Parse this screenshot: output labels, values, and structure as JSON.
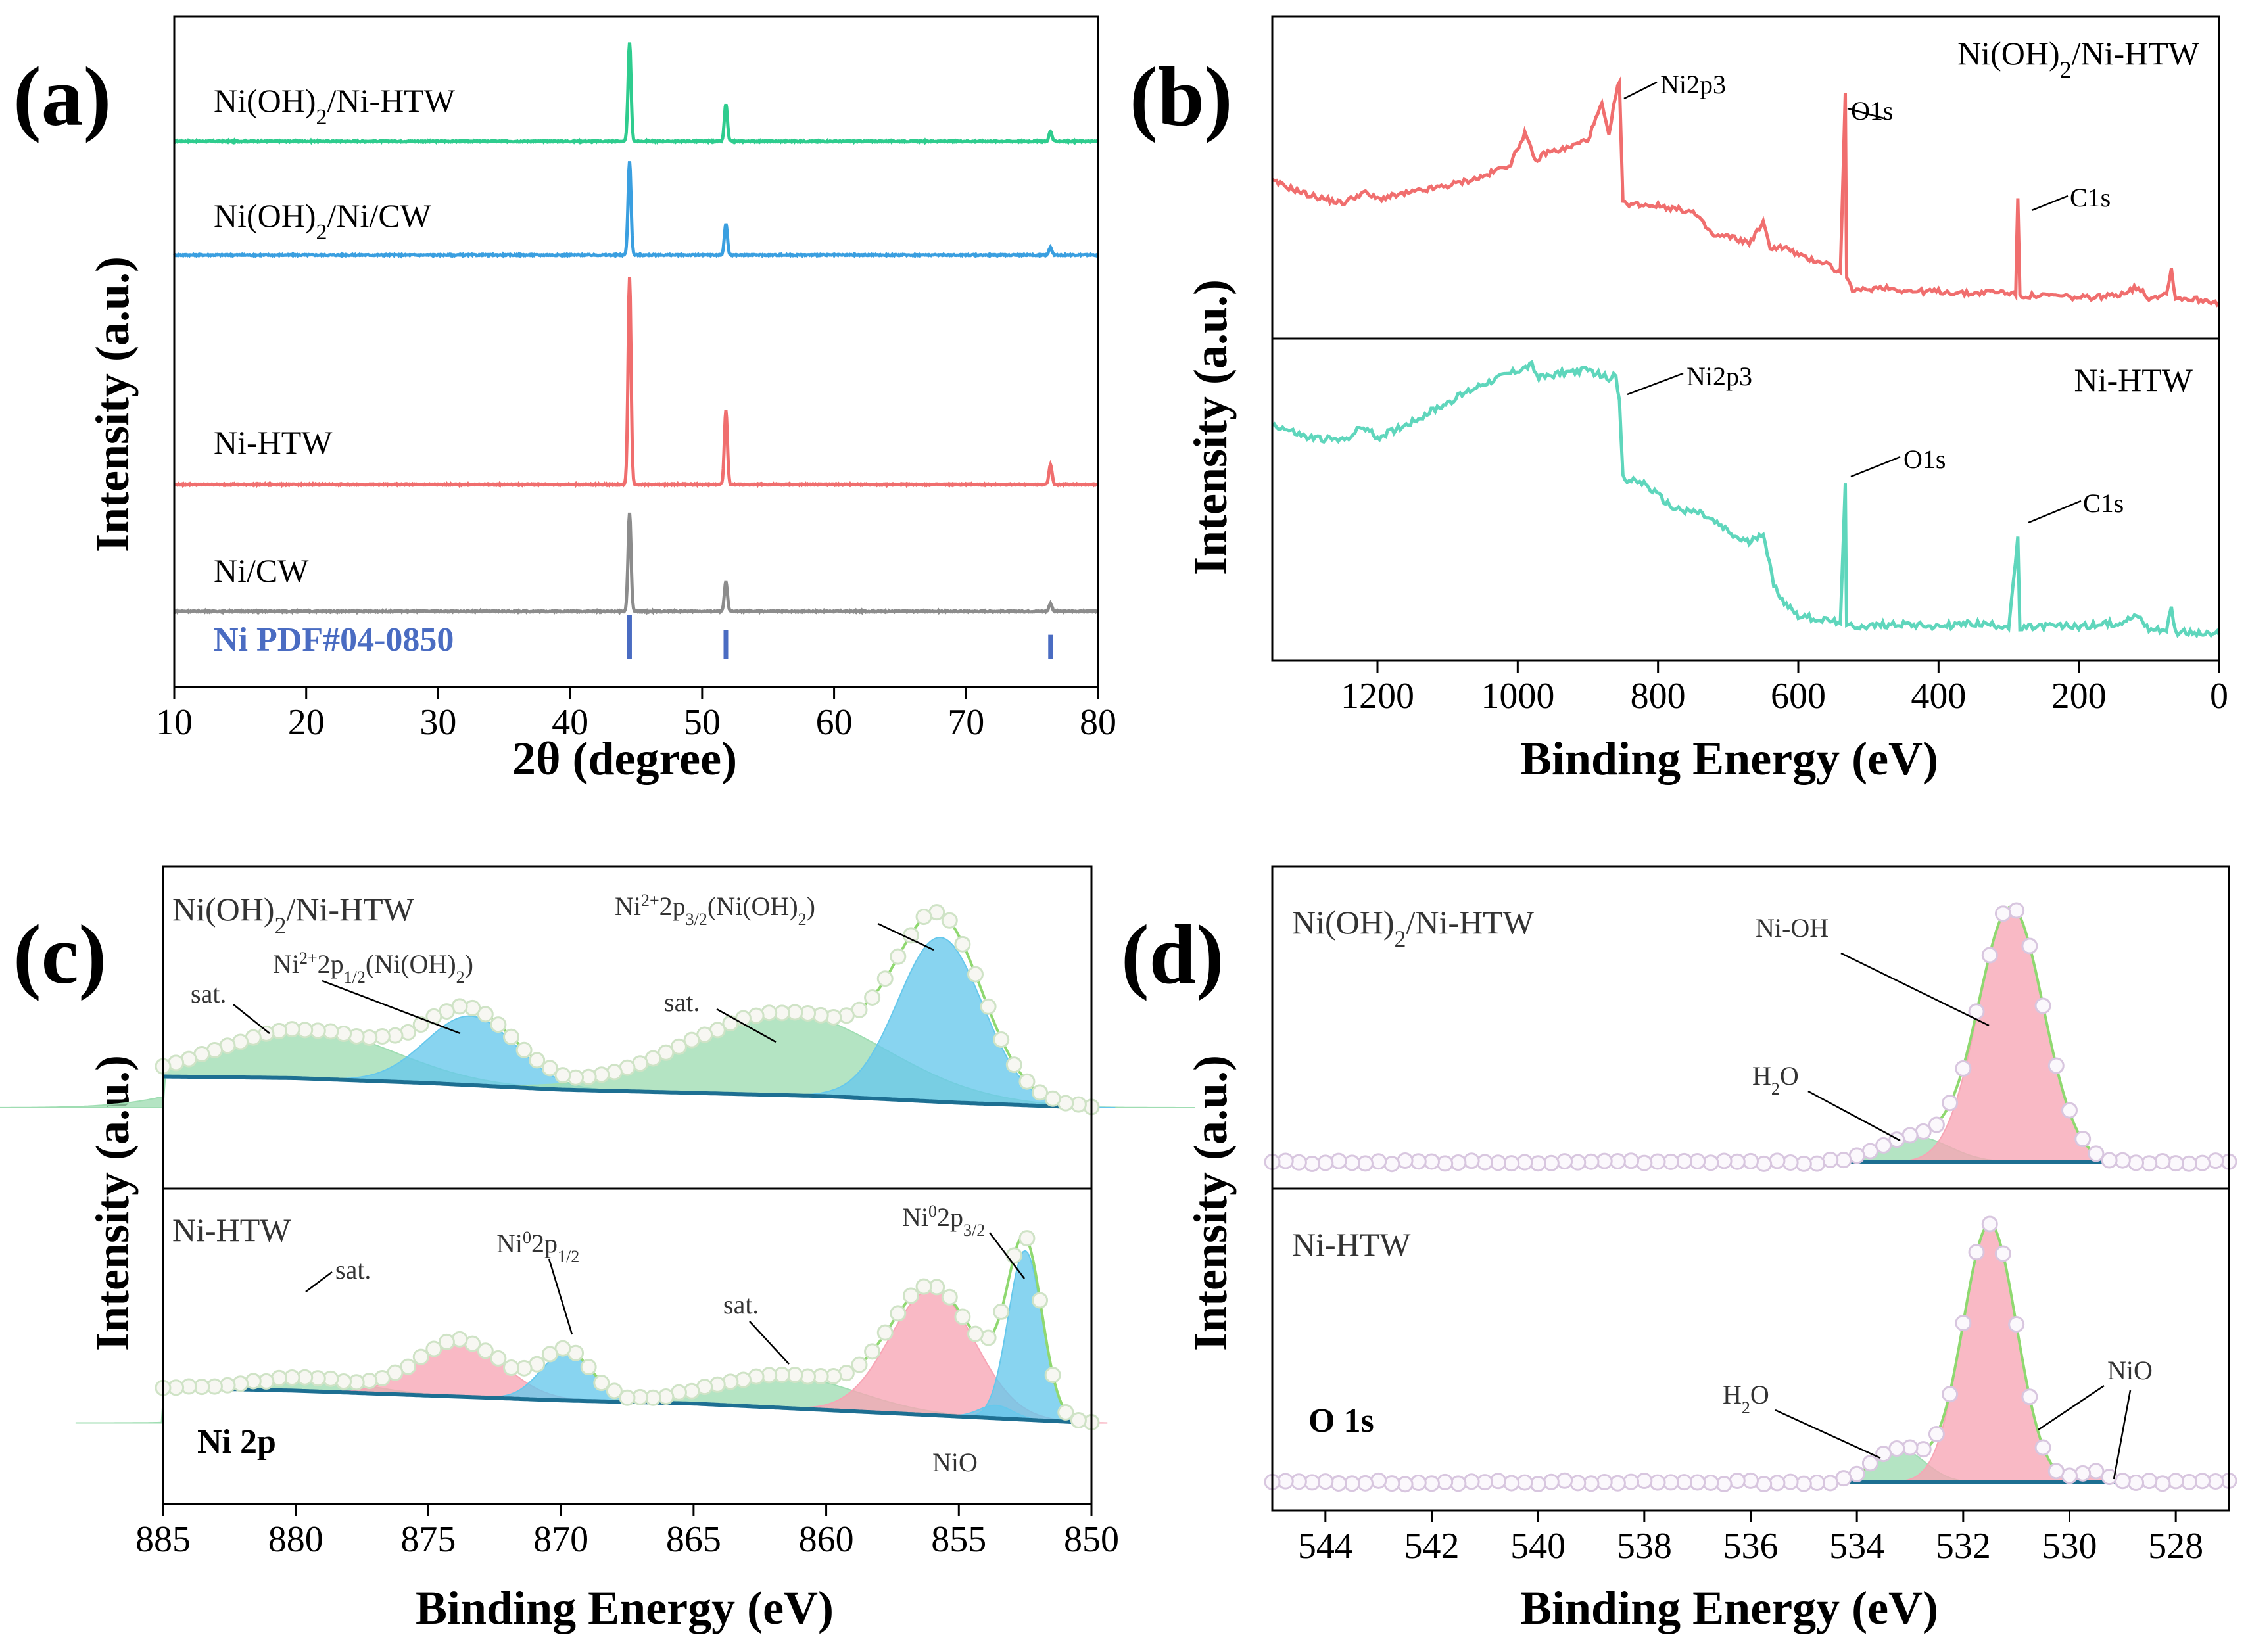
{
  "colors": {
    "green": "#2ecc8e",
    "blue": "#3a9fe0",
    "red": "#f06e6e",
    "gray": "#8c8c8c",
    "pdf": "#4a6cc2",
    "teal": "#5fd6bc",
    "baseline": "#1d6f92",
    "fill_green": "#9fddb2",
    "fill_blue": "#66c8ec",
    "fill_pink": "#f7a5b5",
    "env": "#8fd870"
  },
  "chart_data": [
    {
      "panel": "(a)",
      "type": "line",
      "xlabel": "2θ  (degree)",
      "ylabel": "Intensity (a.u.)",
      "xlim": [
        10,
        80
      ],
      "xticks": [
        10,
        20,
        30,
        40,
        50,
        60,
        70,
        80
      ],
      "series": [
        {
          "name": "Ni(OH)",
          "name_sub": "2",
          "name_rest": "/Ni-HTW",
          "color_key": "green",
          "peaks": [
            {
              "x": 44.5,
              "rel": 1.0
            },
            {
              "x": 51.8,
              "rel": 0.38
            },
            {
              "x": 76.4,
              "rel": 0.1
            }
          ]
        },
        {
          "name": "Ni(OH)",
          "name_sub": "2",
          "name_rest": "/Ni/CW",
          "color_key": "blue",
          "peaks": [
            {
              "x": 44.5,
              "rel": 0.95
            },
            {
              "x": 51.8,
              "rel": 0.32
            },
            {
              "x": 76.4,
              "rel": 0.08
            }
          ]
        },
        {
          "name": "Ni-HTW",
          "name_sub": "",
          "name_rest": "",
          "color_key": "red",
          "peaks": [
            {
              "x": 44.5,
              "rel": 2.1
            },
            {
              "x": 51.8,
              "rel": 0.75
            },
            {
              "x": 76.4,
              "rel": 0.2
            }
          ]
        },
        {
          "name": "Ni/CW",
          "name_sub": "",
          "name_rest": "",
          "color_key": "gray",
          "peaks": [
            {
              "x": 44.5,
              "rel": 1.0
            },
            {
              "x": 51.8,
              "rel": 0.3
            },
            {
              "x": 76.4,
              "rel": 0.08
            }
          ]
        }
      ],
      "reference": {
        "name": "Ni PDF#04-0850",
        "sticks": [
          {
            "x": 44.5,
            "rel": 1.0
          },
          {
            "x": 51.8,
            "rel": 0.65
          },
          {
            "x": 76.4,
            "rel": 0.55
          }
        ]
      }
    },
    {
      "panel": "(b)",
      "type": "line",
      "xlabel": "Binding Energy (eV)",
      "ylabel": "Intensity (a.u.)",
      "xlim": [
        1350,
        0
      ],
      "xticks": [
        1200,
        1000,
        800,
        600,
        400,
        200,
        0
      ],
      "series": [
        {
          "name": "Ni(OH)",
          "name_sub": "2",
          "name_rest": "/Ni-HTW",
          "color_key": "red",
          "points": [
            [
              1350,
              0.55
            ],
            [
              1300,
              0.49
            ],
            [
              1250,
              0.45
            ],
            [
              1220,
              0.5
            ],
            [
              1200,
              0.47
            ],
            [
              1150,
              0.5
            ],
            [
              1100,
              0.53
            ],
            [
              1050,
              0.57
            ],
            [
              1010,
              0.63
            ],
            [
              990,
              0.77
            ],
            [
              975,
              0.64
            ],
            [
              960,
              0.68
            ],
            [
              930,
              0.7
            ],
            [
              900,
              0.74
            ],
            [
              880,
              0.9
            ],
            [
              870,
              0.75
            ],
            [
              860,
              0.95
            ],
            [
              855,
              1.0
            ],
            [
              850,
              0.45
            ],
            [
              800,
              0.44
            ],
            [
              750,
              0.41
            ],
            [
              720,
              0.3
            ],
            [
              700,
              0.3
            ],
            [
              670,
              0.27
            ],
            [
              650,
              0.36
            ],
            [
              640,
              0.25
            ],
            [
              620,
              0.25
            ],
            [
              590,
              0.2
            ],
            [
              560,
              0.18
            ],
            [
              540,
              0.13
            ],
            [
              533,
              0.95
            ],
            [
              531,
              0.1
            ],
            [
              520,
              0.05
            ],
            [
              480,
              0.07
            ],
            [
              440,
              0.05
            ],
            [
              400,
              0.05
            ],
            [
              360,
              0.04
            ],
            [
              320,
              0.05
            ],
            [
              290,
              0.04
            ],
            [
              287,
              0.48
            ],
            [
              284,
              0.03
            ],
            [
              270,
              0.03
            ],
            [
              230,
              0.03
            ],
            [
              200,
              0.02
            ],
            [
              150,
              0.03
            ],
            [
              115,
              0.07
            ],
            [
              100,
              0.02
            ],
            [
              75,
              0.04
            ],
            [
              68,
              0.15
            ],
            [
              62,
              0.02
            ],
            [
              20,
              0.01
            ],
            [
              0,
              0.0
            ]
          ],
          "labels": [
            {
              "text": "Ni2p3",
              "x": 855
            },
            {
              "text": "O1s",
              "x": 531
            },
            {
              "text": "C1s",
              "x": 285
            }
          ]
        },
        {
          "name": "Ni-HTW",
          "name_sub": "",
          "name_rest": "",
          "color_key": "teal",
          "points": [
            [
              1350,
              0.78
            ],
            [
              1300,
              0.73
            ],
            [
              1250,
              0.72
            ],
            [
              1220,
              0.77
            ],
            [
              1200,
              0.73
            ],
            [
              1150,
              0.79
            ],
            [
              1100,
              0.86
            ],
            [
              1050,
              0.93
            ],
            [
              1010,
              0.97
            ],
            [
              980,
              1.0
            ],
            [
              970,
              0.95
            ],
            [
              940,
              0.97
            ],
            [
              900,
              0.98
            ],
            [
              870,
              0.95
            ],
            [
              860,
              0.97
            ],
            [
              855,
              0.86
            ],
            [
              850,
              0.58
            ],
            [
              820,
              0.56
            ],
            [
              780,
              0.47
            ],
            [
              740,
              0.45
            ],
            [
              710,
              0.4
            ],
            [
              690,
              0.36
            ],
            [
              670,
              0.34
            ],
            [
              650,
              0.38
            ],
            [
              635,
              0.18
            ],
            [
              620,
              0.12
            ],
            [
              600,
              0.07
            ],
            [
              560,
              0.05
            ],
            [
              540,
              0.05
            ],
            [
              533,
              0.55
            ],
            [
              531,
              0.03
            ],
            [
              500,
              0.03
            ],
            [
              450,
              0.04
            ],
            [
              400,
              0.03
            ],
            [
              350,
              0.04
            ],
            [
              300,
              0.03
            ],
            [
              287,
              0.35
            ],
            [
              284,
              0.02
            ],
            [
              250,
              0.03
            ],
            [
              200,
              0.03
            ],
            [
              150,
              0.04
            ],
            [
              115,
              0.07
            ],
            [
              100,
              0.02
            ],
            [
              75,
              0.02
            ],
            [
              68,
              0.1
            ],
            [
              62,
              0.01
            ],
            [
              20,
              0.0
            ],
            [
              0,
              0.0
            ]
          ],
          "labels": [
            {
              "text": "Ni2p3",
              "x": 855
            },
            {
              "text": "O1s",
              "x": 531
            },
            {
              "text": "C1s",
              "x": 285
            }
          ]
        }
      ]
    },
    {
      "panel": "(c)",
      "type": "line",
      "xlabel": "Binding Energy (eV)",
      "ylabel": "Intensity (a.u.)",
      "xlim": [
        885,
        850
      ],
      "xticks": [
        885,
        880,
        875,
        870,
        865,
        860,
        855,
        850
      ],
      "annotation": "Ni 2p",
      "subplots": [
        {
          "name": "Ni(OH)",
          "name_sub": "2",
          "name_rest": "/Ni-HTW",
          "baseline": [
            [
              885,
              0.05
            ],
            [
              880,
              0.04
            ],
            [
              875,
              0.01
            ],
            [
              870,
              -0.03
            ],
            [
              865,
              -0.05
            ],
            [
              860,
              -0.07
            ],
            [
              855,
              -0.11
            ],
            [
              850,
              -0.14
            ]
          ],
          "peaks": [
            {
              "label": "sat.",
              "center": 879.5,
              "height": 0.3,
              "width": 6.0,
              "fill": "fill_green"
            },
            {
              "label": "Ni2+2p1/2(Ni(OH)2)",
              "center": 873.4,
              "height": 0.42,
              "width": 3.2,
              "fill": "fill_blue"
            },
            {
              "label": "sat.",
              "center": 861.5,
              "height": 0.5,
              "width": 7.0,
              "fill": "fill_green"
            },
            {
              "label": "Ni2+2p3/2(Ni(OH)2)",
              "center": 855.7,
              "height": 1.0,
              "width": 3.0,
              "fill": "fill_blue"
            }
          ]
        },
        {
          "name": "Ni-HTW",
          "name_sub": "",
          "name_rest": "",
          "baseline": [
            [
              885,
              0.12
            ],
            [
              880,
              0.1
            ],
            [
              875,
              0.07
            ],
            [
              870,
              0.04
            ],
            [
              865,
              0.02
            ],
            [
              860,
              -0.02
            ],
            [
              855,
              -0.06
            ],
            [
              850,
              -0.1
            ]
          ],
          "peaks": [
            {
              "label": "sat.",
              "center": 879.5,
              "height": 0.08,
              "width": 4.0,
              "fill": "fill_green"
            },
            {
              "label": "",
              "center": 873.8,
              "height": 0.35,
              "width": 3.0,
              "fill": "fill_pink"
            },
            {
              "label": "Ni02p1/2",
              "center": 869.8,
              "height": 0.3,
              "width": 1.8,
              "fill": "fill_blue"
            },
            {
              "label": "sat.",
              "center": 861.5,
              "height": 0.2,
              "width": 5.0,
              "fill": "fill_green"
            },
            {
              "label": "",
              "center": 856.0,
              "height": 0.78,
              "width": 3.0,
              "fill": "fill_pink"
            },
            {
              "label": "NiO",
              "center": 853.6,
              "height": 0.08,
              "width": 1.2,
              "fill": "fill_blue"
            },
            {
              "label": "Ni02p3/2",
              "center": 852.5,
              "height": 1.05,
              "width": 1.2,
              "fill": "fill_blue"
            }
          ]
        }
      ],
      "labels": {
        "sat": "sat.",
        "ni2_p12_pre": "Ni",
        "ni2_p12_sup": "2+",
        "ni2_p12_mid": "2p",
        "ni2_p12_sub": "1/2",
        "ni2_p12_post": "(Ni(OH)",
        "ni2_p12_sub2": "2",
        "ni2_p12_end": ")",
        "ni2_p32_pre": "Ni",
        "ni2_p32_sup": "2+",
        "ni2_p32_mid": "2p",
        "ni2_p32_sub": "3/2",
        "ni2_p32_post": "(Ni(OH)",
        "ni2_p32_sub2": "2",
        "ni2_p32_end": ")",
        "ni0_p12_pre": "Ni",
        "ni0_p12_sup": "0",
        "ni0_p12_mid": "2p",
        "ni0_p12_sub": "1/2",
        "ni0_p32_pre": "Ni",
        "ni0_p32_sup": "0",
        "ni0_p32_mid": "2p",
        "ni0_p32_sub": "3/2",
        "nio": "NiO"
      }
    },
    {
      "panel": "(d)",
      "type": "line",
      "xlabel": "Binding Energy (eV)",
      "ylabel": "Intensity (a.u.)",
      "xlim": [
        545,
        527
      ],
      "xticks": [
        544,
        542,
        540,
        538,
        536,
        534,
        532,
        530,
        528
      ],
      "annotation": "O 1s",
      "subplots": [
        {
          "name": "Ni(OH)",
          "name_sub": "2",
          "name_rest": "/Ni-HTW",
          "baseline": [
            [
              545,
              0.0
            ],
            [
              534.5,
              0.0
            ],
            [
              528.5,
              0.0
            ],
            [
              527,
              0.0
            ]
          ],
          "peaks": [
            {
              "label": "H2O",
              "center": 532.9,
              "height": 0.1,
              "width": 1.2,
              "fill": "fill_green"
            },
            {
              "label": "Ni-OH",
              "center": 531.1,
              "height": 1.0,
              "width": 1.15,
              "fill": "fill_pink"
            }
          ]
        },
        {
          "name": "Ni-HTW",
          "name_sub": "",
          "name_rest": "",
          "baseline": [
            [
              545,
              0.0
            ],
            [
              534.5,
              0.0
            ],
            [
              528.5,
              0.0
            ],
            [
              527,
              0.0
            ]
          ],
          "peaks": [
            {
              "label": "H2O",
              "center": 533.2,
              "height": 0.13,
              "width": 0.9,
              "fill": "fill_green"
            },
            {
              "label": "",
              "center": 531.5,
              "height": 1.0,
              "width": 0.95,
              "fill": "fill_pink"
            },
            {
              "label": "NiO",
              "center": 529.5,
              "height": 0.04,
              "width": 0.5,
              "fill": "fill_pink"
            }
          ]
        }
      ],
      "labels": {
        "h2o_pre": "H",
        "h2o_sub": "2",
        "h2o_post": "O",
        "nioh": "Ni-OH",
        "nio": "NiO"
      }
    }
  ]
}
